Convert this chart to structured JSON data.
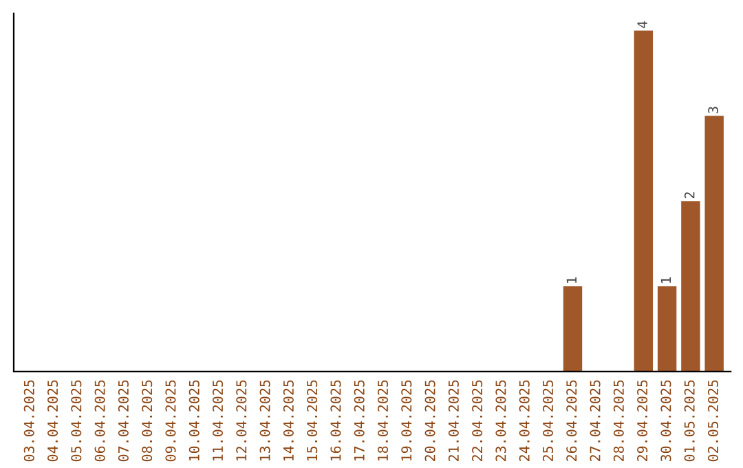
{
  "chart_data": {
    "type": "bar",
    "categories": [
      "03.04.2025",
      "04.04.2025",
      "05.04.2025",
      "06.04.2025",
      "07.04.2025",
      "08.04.2025",
      "09.04.2025",
      "10.04.2025",
      "11.04.2025",
      "12.04.2025",
      "13.04.2025",
      "14.04.2025",
      "15.04.2025",
      "16.04.2025",
      "17.04.2025",
      "18.04.2025",
      "19.04.2025",
      "20.04.2025",
      "21.04.2025",
      "22.04.2025",
      "23.04.2025",
      "24.04.2025",
      "25.04.2025",
      "26.04.2025",
      "27.04.2025",
      "28.04.2025",
      "29.04.2025",
      "30.04.2025",
      "01.05.2025",
      "02.05.2025"
    ],
    "values": [
      null,
      null,
      null,
      null,
      null,
      null,
      null,
      null,
      null,
      null,
      null,
      null,
      null,
      null,
      null,
      null,
      null,
      null,
      null,
      null,
      null,
      null,
      null,
      1,
      null,
      null,
      4,
      1,
      2,
      3
    ],
    "value_labels": [
      null,
      null,
      null,
      null,
      null,
      null,
      null,
      null,
      null,
      null,
      null,
      null,
      null,
      null,
      null,
      null,
      null,
      null,
      null,
      null,
      null,
      null,
      null,
      "1",
      null,
      null,
      "4",
      "1",
      "2",
      "3"
    ],
    "color": "#a0572a"
  }
}
